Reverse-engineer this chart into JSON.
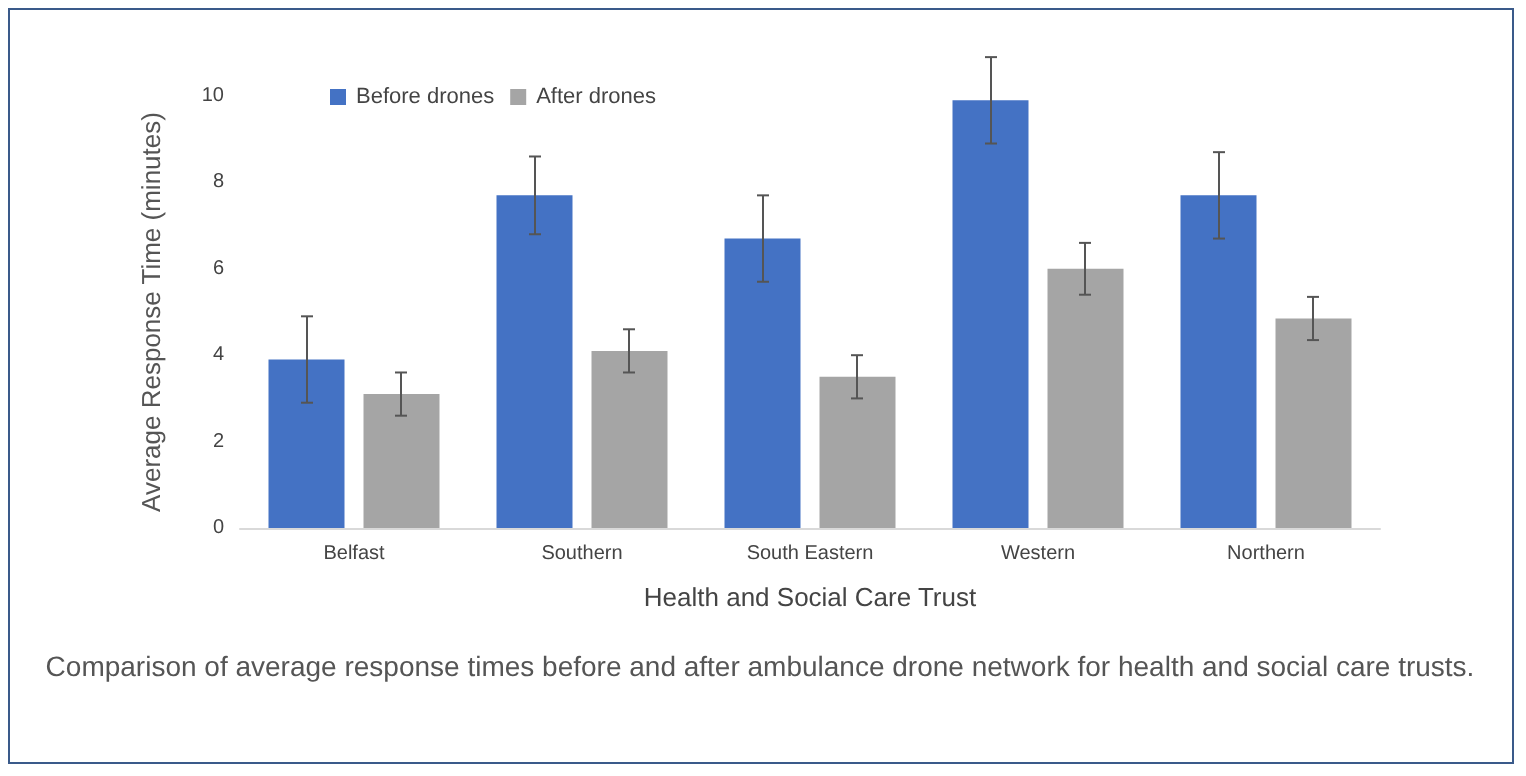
{
  "chart_data": {
    "type": "bar",
    "xlabel": "Health and Social Care Trust",
    "ylabel": "Average Response Time (minutes)",
    "categories": [
      "Belfast",
      "Southern",
      "South Eastern",
      "Western",
      "Northern"
    ],
    "series": [
      {
        "name": "Before drones",
        "color": "#4472c4",
        "values": [
          3.9,
          7.7,
          6.7,
          9.9,
          7.7
        ],
        "errors": [
          1.0,
          0.9,
          1.0,
          1.0,
          1.0
        ]
      },
      {
        "name": "After drones",
        "color": "#a5a5a5",
        "values": [
          3.1,
          4.1,
          3.5,
          6.0,
          4.85
        ],
        "errors": [
          0.5,
          0.5,
          0.5,
          0.6,
          0.5
        ]
      }
    ],
    "ylim": [
      0,
      10
    ],
    "yticks": [
      0,
      2,
      4,
      6,
      8,
      10
    ],
    "grid": false,
    "legend": "top left",
    "annotations": [
      "Comparison of average response times before and after ambulance drone network for health and social care trusts."
    ]
  }
}
